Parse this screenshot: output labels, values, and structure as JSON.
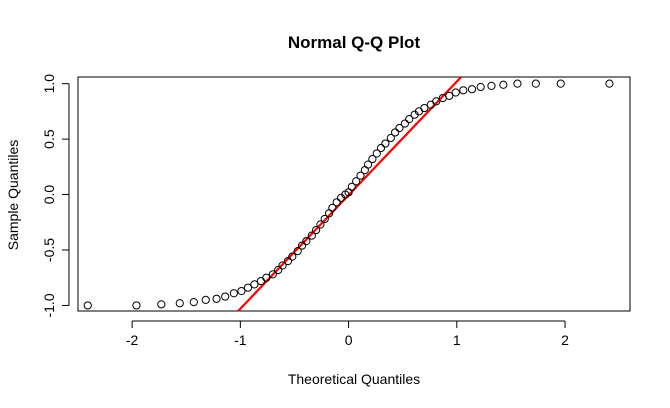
{
  "chart_data": {
    "type": "scatter",
    "title": "Normal Q-Q Plot",
    "xlabel": "Theoretical Quantiles",
    "ylabel": "Sample Quantiles",
    "xlim": [
      -2.5,
      2.6
    ],
    "ylim": [
      -1.05,
      1.06
    ],
    "x_ticks": [
      -2,
      -1,
      0,
      1,
      2
    ],
    "x_tick_labels": [
      "-2",
      "-1",
      "0",
      "1",
      "2"
    ],
    "y_ticks": [
      -1.0,
      -0.5,
      0.0,
      0.5,
      1.0
    ],
    "y_tick_labels": [
      "-1.0",
      "-0.5",
      "0.0",
      "0.5",
      "1.0"
    ],
    "grid": false,
    "point_color": "#000000",
    "line_color": "#ff0000",
    "reference_line": {
      "x": [
        -1.02,
        1.04
      ],
      "y": [
        -1.05,
        1.06
      ]
    },
    "points": {
      "x": [
        -2.41,
        -1.96,
        -1.73,
        -1.56,
        -1.43,
        -1.32,
        -1.22,
        -1.14,
        -1.06,
        -0.99,
        -0.93,
        -0.87,
        -0.81,
        -0.76,
        -0.7,
        -0.65,
        -0.61,
        -0.56,
        -0.52,
        -0.47,
        -0.43,
        -0.39,
        -0.34,
        -0.3,
        -0.26,
        -0.22,
        -0.18,
        -0.15,
        -0.11,
        -0.07,
        -0.03,
        0.0,
        0.03,
        0.07,
        0.11,
        0.15,
        0.18,
        0.22,
        0.26,
        0.3,
        0.34,
        0.39,
        0.43,
        0.47,
        0.52,
        0.56,
        0.61,
        0.65,
        0.7,
        0.76,
        0.81,
        0.87,
        0.93,
        0.99,
        1.06,
        1.14,
        1.22,
        1.32,
        1.43,
        1.56,
        1.73,
        1.96,
        2.41
      ],
      "y": [
        -1.0,
        -1.0,
        -0.99,
        -0.98,
        -0.97,
        -0.95,
        -0.94,
        -0.92,
        -0.89,
        -0.87,
        -0.84,
        -0.81,
        -0.78,
        -0.75,
        -0.72,
        -0.68,
        -0.64,
        -0.6,
        -0.56,
        -0.51,
        -0.46,
        -0.42,
        -0.37,
        -0.32,
        -0.27,
        -0.22,
        -0.17,
        -0.12,
        -0.07,
        -0.03,
        0.0,
        0.02,
        0.07,
        0.12,
        0.17,
        0.22,
        0.27,
        0.32,
        0.37,
        0.42,
        0.46,
        0.51,
        0.56,
        0.6,
        0.64,
        0.68,
        0.72,
        0.75,
        0.78,
        0.81,
        0.84,
        0.87,
        0.89,
        0.92,
        0.94,
        0.95,
        0.97,
        0.98,
        0.99,
        1.0,
        1.0,
        1.0,
        1.0
      ]
    }
  }
}
